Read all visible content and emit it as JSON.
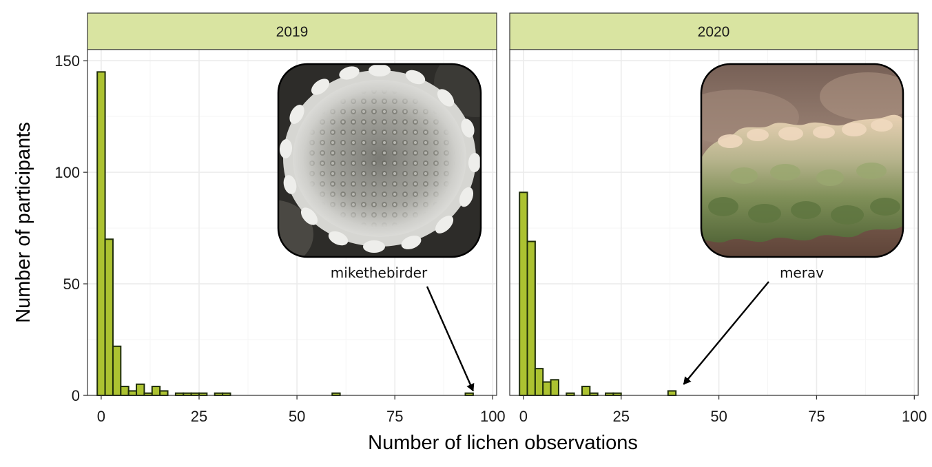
{
  "chart_data": {
    "type": "bar",
    "subtype": "faceted histogram",
    "xlabel": "Number of lichen observations",
    "ylabel": "Number of participants",
    "xlim": [
      -3.5,
      101
    ],
    "ylim": [
      0,
      155
    ],
    "x_ticks": [
      0,
      25,
      50,
      75,
      100
    ],
    "y_ticks": [
      0,
      50,
      100,
      150
    ],
    "bin_width": 2,
    "grid": true,
    "colors": {
      "bar_fill": "#acc231",
      "bar_stroke": "#1f2d0b",
      "strip_fill": "#d9e4a1",
      "panel_border": "#333333",
      "grid_major": "#ebebeb",
      "grid_minor": "#f5f5f5"
    },
    "facets": [
      {
        "strip_label": "2019",
        "bins": [
          {
            "x": 0,
            "count": 145
          },
          {
            "x": 2,
            "count": 70
          },
          {
            "x": 4,
            "count": 22
          },
          {
            "x": 6,
            "count": 4
          },
          {
            "x": 8,
            "count": 2
          },
          {
            "x": 10,
            "count": 5
          },
          {
            "x": 12,
            "count": 1
          },
          {
            "x": 14,
            "count": 4
          },
          {
            "x": 16,
            "count": 2
          },
          {
            "x": 20,
            "count": 1
          },
          {
            "x": 22,
            "count": 1
          },
          {
            "x": 24,
            "count": 1
          },
          {
            "x": 26,
            "count": 1
          },
          {
            "x": 30,
            "count": 1
          },
          {
            "x": 32,
            "count": 1
          },
          {
            "x": 60,
            "count": 1
          },
          {
            "x": 94,
            "count": 1
          }
        ],
        "annotation": {
          "text": "mikethebirder",
          "points_to": {
            "x": 95,
            "y": 2
          },
          "photo": "grey rosette lichen on dark rock"
        }
      },
      {
        "strip_label": "2020",
        "bins": [
          {
            "x": 0,
            "count": 91
          },
          {
            "x": 2,
            "count": 69
          },
          {
            "x": 4,
            "count": 12
          },
          {
            "x": 6,
            "count": 6
          },
          {
            "x": 8,
            "count": 7
          },
          {
            "x": 12,
            "count": 1
          },
          {
            "x": 16,
            "count": 4
          },
          {
            "x": 18,
            "count": 1
          },
          {
            "x": 22,
            "count": 1
          },
          {
            "x": 24,
            "count": 1
          },
          {
            "x": 38,
            "count": 2
          }
        ],
        "annotation": {
          "text": "merav",
          "points_to": {
            "x": 41,
            "y": 5
          },
          "photo": "green leafy lichen on a twig"
        }
      }
    ]
  }
}
